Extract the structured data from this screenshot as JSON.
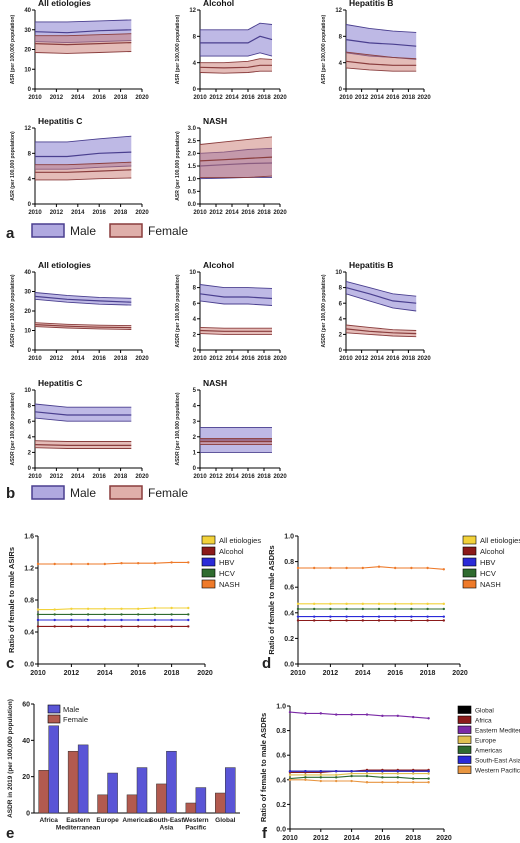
{
  "colors": {
    "male_line": "#4a3f8f",
    "male_fill": "#6f63c6",
    "female_line": "#8a3d3d",
    "female_fill": "#c97a72",
    "all": "#f2d23a",
    "alcohol": "#8b1a1a",
    "hbv": "#2a2ad8",
    "hcv": "#2f6b2f",
    "nash": "#ee7a2a",
    "global": "#000000",
    "africa": "#8b1a1a",
    "emr": "#7a2aa6",
    "europe": "#e0c050",
    "americas": "#2f6b2f",
    "sea": "#2a2ad8",
    "wpr": "#e89540",
    "bar_male": "#5a55d6",
    "bar_female": "#b25a4f"
  },
  "panel_labels": {
    "a": "a",
    "b": "b",
    "c": "c",
    "d": "d",
    "e": "e",
    "f": "f"
  },
  "legend_ab": {
    "male": "Male",
    "female": "Female"
  },
  "chart_data": [
    {
      "panel": "a",
      "type": "area",
      "ylabel": "ASR (per 100,000 population)",
      "xticks": [
        "2010",
        "2012",
        "2014",
        "2016",
        "2018",
        "2020"
      ],
      "subplots": [
        {
          "title": "All etiologies",
          "ylim": [
            0,
            40
          ],
          "yticks": [
            "0",
            "10",
            "20",
            "30",
            "40"
          ],
          "x": [
            2010,
            2013,
            2016,
            2019
          ],
          "male": {
            "mid": [
              29,
              28.5,
              29.5,
              30
            ],
            "lo": [
              24,
              23.5,
              24,
              24.5
            ],
            "hi": [
              34,
              34,
              34.5,
              35
            ]
          },
          "female": {
            "mid": [
              23,
              22.5,
              23,
              23.5
            ],
            "lo": [
              18.5,
              18,
              18.5,
              19
            ],
            "hi": [
              27,
              27,
              27.5,
              28
            ]
          }
        },
        {
          "title": "Alcohol",
          "ylim": [
            0,
            12
          ],
          "yticks": [
            "0",
            "4",
            "8",
            "12"
          ],
          "x": [
            2010,
            2013,
            2016,
            2017.5,
            2019
          ],
          "male": {
            "mid": [
              7,
              7,
              7,
              8,
              7.5
            ],
            "lo": [
              5,
              5,
              5,
              5.5,
              5
            ],
            "hi": [
              9,
              9,
              9,
              10,
              9.8
            ]
          },
          "female": {
            "mid": [
              3.3,
              3.2,
              3.3,
              3.6,
              3.6
            ],
            "lo": [
              2.5,
              2.4,
              2.5,
              2.7,
              2.7
            ],
            "hi": [
              4,
              4,
              4.2,
              4.6,
              4.5
            ]
          }
        },
        {
          "title": "Hepatitis B",
          "ylim": [
            0,
            12
          ],
          "yticks": [
            "0",
            "4",
            "8",
            "12"
          ],
          "x": [
            2010,
            2013,
            2016,
            2019
          ],
          "male": {
            "mid": [
              7.5,
              7,
              6.8,
              6.5
            ],
            "lo": [
              5.5,
              5,
              4.8,
              4.5
            ],
            "hi": [
              9.8,
              9.2,
              8.8,
              8.6
            ]
          },
          "female": {
            "mid": [
              4.2,
              3.8,
              3.6,
              3.6
            ],
            "lo": [
              3.2,
              2.9,
              2.7,
              2.7
            ],
            "hi": [
              5.6,
              5.2,
              4.8,
              4.6
            ]
          }
        },
        {
          "title": "Hepatitis C",
          "ylim": [
            0,
            12
          ],
          "yticks": [
            "0",
            "4",
            "8",
            "12"
          ],
          "x": [
            2010,
            2013,
            2016,
            2019
          ],
          "male": {
            "mid": [
              7.5,
              7.5,
              8,
              8.2
            ],
            "lo": [
              5.5,
              5.5,
              5.8,
              6
            ],
            "hi": [
              9.8,
              9.8,
              10.3,
              10.7
            ]
          },
          "female": {
            "mid": [
              5,
              5,
              5.2,
              5.4
            ],
            "lo": [
              3.8,
              3.8,
              4,
              4.1
            ],
            "hi": [
              6.2,
              6.2,
              6.4,
              6.6
            ]
          }
        },
        {
          "title": "NASH",
          "ylim": [
            0,
            3
          ],
          "yticks": [
            "0.0",
            "0.5",
            "1.0",
            "1.5",
            "2.0",
            "2.5",
            "3.0"
          ],
          "x": [
            2010,
            2013,
            2016,
            2019
          ],
          "male": {
            "mid": [
              1.5,
              1.55,
              1.6,
              1.62
            ],
            "lo": [
              1,
              1.02,
              1.05,
              1.05
            ],
            "hi": [
              2,
              2.05,
              2.15,
              2.2
            ]
          },
          "female": {
            "mid": [
              1.7,
              1.75,
              1.8,
              1.85
            ],
            "lo": [
              1.05,
              1.05,
              1.05,
              1.1
            ],
            "hi": [
              2.35,
              2.45,
              2.55,
              2.65
            ]
          }
        }
      ]
    },
    {
      "panel": "b",
      "type": "area",
      "ylabel": "ASDR (per 100,000 population)",
      "xticks": [
        "2010",
        "2012",
        "2014",
        "2016",
        "2018",
        "2020"
      ],
      "subplots": [
        {
          "title": "All etiologies",
          "ylim": [
            0,
            40
          ],
          "yticks": [
            "0",
            "10",
            "20",
            "30",
            "40"
          ],
          "x": [
            2010,
            2013,
            2016,
            2019
          ],
          "male": {
            "mid": [
              27.5,
              26,
              25.2,
              24.5
            ],
            "lo": [
              26,
              24.5,
              23.5,
              23
            ],
            "hi": [
              29.5,
              28,
              27,
              26.5
            ]
          },
          "female": {
            "mid": [
              13,
              12.2,
              11.7,
              11.5
            ],
            "lo": [
              12,
              11.3,
              10.8,
              10.5
            ],
            "hi": [
              14,
              13.2,
              12.7,
              12.5
            ]
          }
        },
        {
          "title": "Alcohol",
          "ylim": [
            0,
            10
          ],
          "yticks": [
            "0",
            "2",
            "4",
            "6",
            "8",
            "10"
          ],
          "x": [
            2010,
            2013,
            2016,
            2019
          ],
          "male": {
            "mid": [
              7.2,
              6.8,
              6.8,
              6.6
            ],
            "lo": [
              6.3,
              5.9,
              5.9,
              5.7
            ],
            "hi": [
              8.4,
              8,
              8,
              7.9
            ]
          },
          "female": {
            "mid": [
              2.5,
              2.4,
              2.4,
              2.4
            ],
            "lo": [
              2.1,
              2,
              2,
              2
            ],
            "hi": [
              2.9,
              2.8,
              2.8,
              2.8
            ]
          }
        },
        {
          "title": "Hepatitis B",
          "ylim": [
            0,
            10
          ],
          "yticks": [
            "0",
            "2",
            "4",
            "6",
            "8",
            "10"
          ],
          "x": [
            2010,
            2013,
            2016,
            2019
          ],
          "male": {
            "mid": [
              8,
              7.2,
              6.3,
              6
            ],
            "lo": [
              7.2,
              6.3,
              5.4,
              5
            ],
            "hi": [
              8.8,
              8,
              7.2,
              6.9
            ]
          },
          "female": {
            "mid": [
              2.7,
              2.4,
              2.2,
              2.1
            ],
            "lo": [
              2.2,
              2,
              1.8,
              1.7
            ],
            "hi": [
              3.2,
              2.9,
              2.6,
              2.5
            ]
          }
        },
        {
          "title": "Hepatitis C",
          "ylim": [
            0,
            10
          ],
          "yticks": [
            "0",
            "2",
            "4",
            "6",
            "8",
            "10"
          ],
          "x": [
            2010,
            2013,
            2016,
            2019
          ],
          "male": {
            "mid": [
              7.2,
              6.8,
              6.8,
              6.8
            ],
            "lo": [
              6.4,
              6,
              6,
              6
            ],
            "hi": [
              8.2,
              7.8,
              7.8,
              7.8
            ]
          },
          "female": {
            "mid": [
              3,
              2.9,
              2.9,
              2.9
            ],
            "lo": [
              2.6,
              2.5,
              2.5,
              2.5
            ],
            "hi": [
              3.5,
              3.4,
              3.4,
              3.4
            ]
          }
        },
        {
          "title": "NASH",
          "ylim": [
            0,
            5
          ],
          "yticks": [
            "0",
            "1",
            "2",
            "3",
            "4",
            "5"
          ],
          "x": [
            2010,
            2013,
            2016,
            2019
          ],
          "male": {
            "mid": [
              1.8,
              1.8,
              1.8,
              1.8
            ],
            "lo": [
              1,
              1,
              1,
              1
            ],
            "hi": [
              2.6,
              2.6,
              2.6,
              2.6
            ]
          },
          "female": {
            "mid": [
              1.7,
              1.7,
              1.7,
              1.7
            ],
            "lo": [
              1.5,
              1.5,
              1.5,
              1.5
            ],
            "hi": [
              1.9,
              1.9,
              1.9,
              1.9
            ]
          }
        }
      ]
    },
    {
      "panel": "c",
      "type": "line",
      "ylabel": "Ratio of female to male ASIRs",
      "ylim": [
        0,
        1.6
      ],
      "yticks": [
        "0.0",
        "0.4",
        "0.8",
        "1.2",
        "1.6"
      ],
      "xlim": [
        2010,
        2020
      ],
      "xticks": [
        "2010",
        "2012",
        "2014",
        "2016",
        "2018",
        "2020"
      ],
      "x": [
        2010,
        2011,
        2012,
        2013,
        2014,
        2015,
        2016,
        2017,
        2018,
        2019
      ],
      "series": [
        {
          "name": "All etiologies",
          "color": "all",
          "values": [
            0.68,
            0.68,
            0.69,
            0.69,
            0.69,
            0.69,
            0.69,
            0.7,
            0.7,
            0.7
          ]
        },
        {
          "name": "Alcohol",
          "color": "alcohol",
          "values": [
            0.47,
            0.47,
            0.47,
            0.47,
            0.47,
            0.47,
            0.47,
            0.47,
            0.47,
            0.47
          ]
        },
        {
          "name": "HBV",
          "color": "hbv",
          "values": [
            0.55,
            0.55,
            0.55,
            0.55,
            0.55,
            0.55,
            0.55,
            0.55,
            0.55,
            0.55
          ]
        },
        {
          "name": "HCV",
          "color": "hcv",
          "values": [
            0.62,
            0.62,
            0.62,
            0.62,
            0.62,
            0.62,
            0.62,
            0.62,
            0.62,
            0.62
          ]
        },
        {
          "name": "NASH",
          "color": "nash",
          "values": [
            1.25,
            1.25,
            1.25,
            1.25,
            1.25,
            1.26,
            1.26,
            1.26,
            1.27,
            1.27
          ]
        }
      ]
    },
    {
      "panel": "d",
      "type": "line",
      "ylabel": "Ratio of female to male ASDRs",
      "ylim": [
        0,
        1.0
      ],
      "yticks": [
        "0.0",
        "0.2",
        "0.4",
        "0.6",
        "0.8",
        "1.0"
      ],
      "xlim": [
        2010,
        2020
      ],
      "xticks": [
        "2010",
        "2012",
        "2014",
        "2016",
        "2018",
        "2020"
      ],
      "x": [
        2010,
        2011,
        2012,
        2013,
        2014,
        2015,
        2016,
        2017,
        2018,
        2019
      ],
      "series": [
        {
          "name": "All etiologies",
          "color": "all",
          "values": [
            0.47,
            0.47,
            0.47,
            0.47,
            0.47,
            0.47,
            0.47,
            0.47,
            0.47,
            0.47
          ]
        },
        {
          "name": "Alcohol",
          "color": "alcohol",
          "values": [
            0.34,
            0.34,
            0.34,
            0.34,
            0.34,
            0.34,
            0.34,
            0.34,
            0.34,
            0.34
          ]
        },
        {
          "name": "HBV",
          "color": "hbv",
          "values": [
            0.37,
            0.37,
            0.37,
            0.37,
            0.37,
            0.37,
            0.37,
            0.37,
            0.37,
            0.37
          ]
        },
        {
          "name": "HCV",
          "color": "hcv",
          "values": [
            0.43,
            0.43,
            0.43,
            0.43,
            0.43,
            0.43,
            0.43,
            0.43,
            0.43,
            0.43
          ]
        },
        {
          "name": "NASH",
          "color": "nash",
          "values": [
            0.75,
            0.75,
            0.75,
            0.75,
            0.75,
            0.76,
            0.75,
            0.75,
            0.75,
            0.74
          ]
        }
      ]
    },
    {
      "panel": "e",
      "type": "bar",
      "ylabel": "ASDR in 2019 (per 100,000 population)",
      "ylim": [
        0,
        60
      ],
      "yticks": [
        "0",
        "20",
        "40",
        "60"
      ],
      "categories": [
        "Africa",
        "Eastern\nMediterranean",
        "Europe",
        "Americas",
        "South-East\nAsia",
        "Western\nPacific",
        "Global"
      ],
      "series": [
        {
          "name": "Male",
          "color": "bar_male",
          "values": [
            48,
            37.5,
            22,
            25,
            34,
            14,
            25
          ]
        },
        {
          "name": "Female",
          "color": "bar_female",
          "values": [
            23.5,
            34,
            10,
            10,
            16,
            5.5,
            11
          ]
        }
      ]
    },
    {
      "panel": "f",
      "type": "line",
      "ylabel": "Ratio of female to male ASDRs",
      "ylim": [
        0,
        1.0
      ],
      "yticks": [
        "0.0",
        "0.2",
        "0.4",
        "0.6",
        "0.8",
        "1.0"
      ],
      "xlim": [
        2010,
        2020
      ],
      "xticks": [
        "2010",
        "2012",
        "2014",
        "2016",
        "2018",
        "2020"
      ],
      "x": [
        2010,
        2011,
        2012,
        2013,
        2014,
        2015,
        2016,
        2017,
        2018,
        2019
      ],
      "series": [
        {
          "name": "Global",
          "color": "global",
          "values": [
            0.47,
            0.47,
            0.47,
            0.47,
            0.47,
            0.47,
            0.47,
            0.47,
            0.47,
            0.47
          ]
        },
        {
          "name": "Africa",
          "color": "africa",
          "values": [
            0.46,
            0.46,
            0.46,
            0.47,
            0.47,
            0.48,
            0.48,
            0.48,
            0.48,
            0.48
          ]
        },
        {
          "name": "Eastern Mediterranean",
          "color": "emr",
          "values": [
            0.95,
            0.94,
            0.94,
            0.93,
            0.93,
            0.93,
            0.92,
            0.92,
            0.91,
            0.9
          ]
        },
        {
          "name": "Europe",
          "color": "europe",
          "values": [
            0.44,
            0.44,
            0.44,
            0.44,
            0.45,
            0.45,
            0.45,
            0.45,
            0.45,
            0.45
          ]
        },
        {
          "name": "Americas",
          "color": "americas",
          "values": [
            0.41,
            0.42,
            0.42,
            0.42,
            0.43,
            0.43,
            0.42,
            0.42,
            0.41,
            0.41
          ]
        },
        {
          "name": "South-East Asia",
          "color": "sea",
          "values": [
            0.47,
            0.47,
            0.47,
            0.47,
            0.47,
            0.47,
            0.47,
            0.47,
            0.47,
            0.47
          ]
        },
        {
          "name": "Western Pacific",
          "color": "wpr",
          "values": [
            0.4,
            0.4,
            0.39,
            0.39,
            0.39,
            0.38,
            0.38,
            0.38,
            0.38,
            0.38
          ]
        }
      ]
    }
  ]
}
